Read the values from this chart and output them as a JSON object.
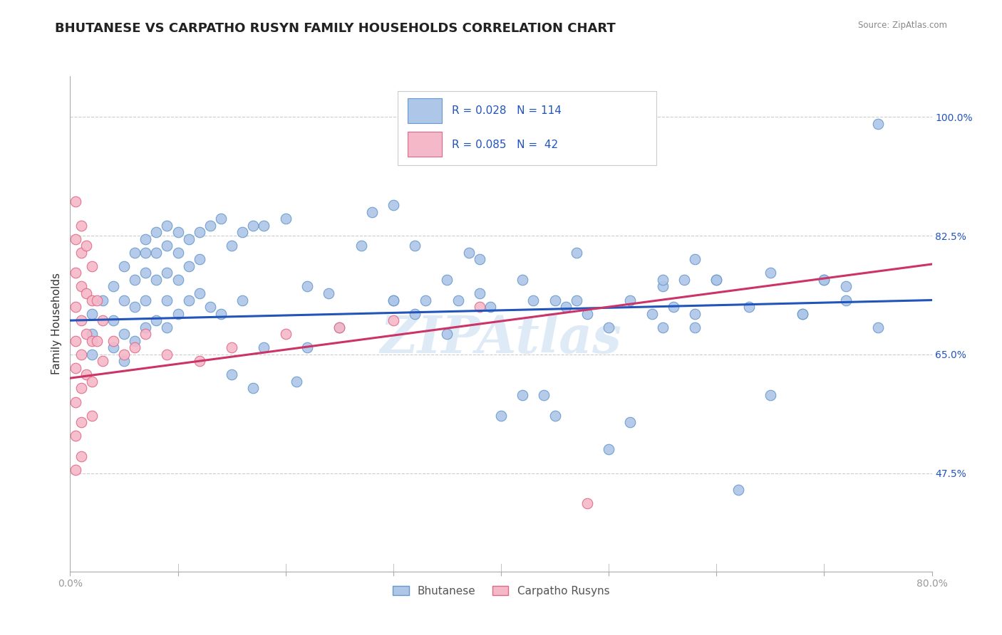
{
  "title": "BHUTANESE VS CARPATHO RUSYN FAMILY HOUSEHOLDS CORRELATION CHART",
  "source": "Source: ZipAtlas.com",
  "ylabel": "Family Households",
  "xlim": [
    0.0,
    0.8
  ],
  "ylim": [
    0.33,
    1.06
  ],
  "yticks": [
    0.475,
    0.65,
    0.825,
    1.0
  ],
  "ytick_labels": [
    "47.5%",
    "65.0%",
    "82.5%",
    "100.0%"
  ],
  "xticks": [
    0.0,
    0.1,
    0.2,
    0.3,
    0.4,
    0.5,
    0.6,
    0.7,
    0.8
  ],
  "xtick_labels": [
    "0.0%",
    "",
    "",
    "",
    "",
    "",
    "",
    "",
    "80.0%"
  ],
  "legend_labels": [
    "Bhutanese",
    "Carpatho Rusyns"
  ],
  "blue_color": "#aec6e8",
  "pink_color": "#f5b8c8",
  "blue_edge": "#6699cc",
  "pink_edge": "#e06888",
  "trend_blue": "#2255bb",
  "trend_pink": "#cc3366",
  "trend_blue_dash": "#aabbdd",
  "R_blue": 0.028,
  "N_blue": 114,
  "R_pink": 0.085,
  "N_pink": 42,
  "watermark": "ZIPAtlas",
  "title_fontsize": 13,
  "axis_label_fontsize": 11,
  "tick_fontsize": 10,
  "blue_scatter_x": [
    0.02,
    0.02,
    0.02,
    0.03,
    0.04,
    0.04,
    0.04,
    0.05,
    0.05,
    0.05,
    0.05,
    0.06,
    0.06,
    0.06,
    0.06,
    0.07,
    0.07,
    0.07,
    0.07,
    0.07,
    0.08,
    0.08,
    0.08,
    0.08,
    0.09,
    0.09,
    0.09,
    0.09,
    0.09,
    0.1,
    0.1,
    0.1,
    0.1,
    0.11,
    0.11,
    0.11,
    0.12,
    0.12,
    0.12,
    0.13,
    0.13,
    0.14,
    0.14,
    0.15,
    0.15,
    0.16,
    0.16,
    0.17,
    0.17,
    0.18,
    0.18,
    0.2,
    0.21,
    0.22,
    0.22,
    0.24,
    0.25,
    0.27,
    0.28,
    0.3,
    0.3,
    0.32,
    0.33,
    0.35,
    0.36,
    0.37,
    0.38,
    0.39,
    0.4,
    0.42,
    0.43,
    0.44,
    0.45,
    0.46,
    0.47,
    0.48,
    0.5,
    0.52,
    0.55,
    0.57,
    0.58,
    0.6,
    0.62,
    0.65,
    0.68,
    0.7,
    0.72,
    0.75,
    0.55,
    0.6,
    0.63,
    0.65,
    0.68,
    0.7,
    0.72,
    0.75,
    0.55,
    0.58,
    0.42,
    0.45,
    0.47,
    0.5,
    0.52,
    0.54,
    0.56,
    0.58,
    0.3,
    0.32,
    0.35,
    0.38
  ],
  "blue_scatter_y": [
    0.71,
    0.68,
    0.65,
    0.73,
    0.75,
    0.7,
    0.66,
    0.78,
    0.73,
    0.68,
    0.64,
    0.8,
    0.76,
    0.72,
    0.67,
    0.82,
    0.8,
    0.77,
    0.73,
    0.69,
    0.83,
    0.8,
    0.76,
    0.7,
    0.84,
    0.81,
    0.77,
    0.73,
    0.69,
    0.83,
    0.8,
    0.76,
    0.71,
    0.82,
    0.78,
    0.73,
    0.83,
    0.79,
    0.74,
    0.84,
    0.72,
    0.85,
    0.71,
    0.81,
    0.62,
    0.83,
    0.73,
    0.84,
    0.6,
    0.84,
    0.66,
    0.85,
    0.61,
    0.75,
    0.66,
    0.74,
    0.69,
    0.81,
    0.86,
    0.87,
    0.73,
    0.81,
    0.73,
    0.76,
    0.73,
    0.8,
    0.79,
    0.72,
    0.56,
    0.76,
    0.73,
    0.59,
    0.73,
    0.72,
    0.8,
    0.71,
    0.51,
    0.55,
    0.69,
    0.76,
    0.71,
    0.76,
    0.45,
    0.59,
    0.71,
    0.76,
    0.75,
    0.99,
    0.75,
    0.76,
    0.72,
    0.77,
    0.71,
    0.76,
    0.73,
    0.69,
    0.76,
    0.79,
    0.59,
    0.56,
    0.73,
    0.69,
    0.73,
    0.71,
    0.72,
    0.69,
    0.73,
    0.71,
    0.68,
    0.74
  ],
  "pink_scatter_x": [
    0.005,
    0.005,
    0.005,
    0.005,
    0.005,
    0.005,
    0.005,
    0.005,
    0.005,
    0.01,
    0.01,
    0.01,
    0.01,
    0.01,
    0.01,
    0.01,
    0.01,
    0.015,
    0.015,
    0.015,
    0.015,
    0.02,
    0.02,
    0.02,
    0.02,
    0.02,
    0.025,
    0.025,
    0.03,
    0.03,
    0.04,
    0.05,
    0.06,
    0.07,
    0.09,
    0.12,
    0.15,
    0.2,
    0.25,
    0.3,
    0.38,
    0.48
  ],
  "pink_scatter_y": [
    0.875,
    0.82,
    0.77,
    0.72,
    0.67,
    0.63,
    0.58,
    0.53,
    0.48,
    0.84,
    0.8,
    0.75,
    0.7,
    0.65,
    0.6,
    0.55,
    0.5,
    0.81,
    0.74,
    0.68,
    0.62,
    0.78,
    0.73,
    0.67,
    0.61,
    0.56,
    0.73,
    0.67,
    0.7,
    0.64,
    0.67,
    0.65,
    0.66,
    0.68,
    0.65,
    0.64,
    0.66,
    0.68,
    0.69,
    0.7,
    0.72,
    0.43
  ]
}
